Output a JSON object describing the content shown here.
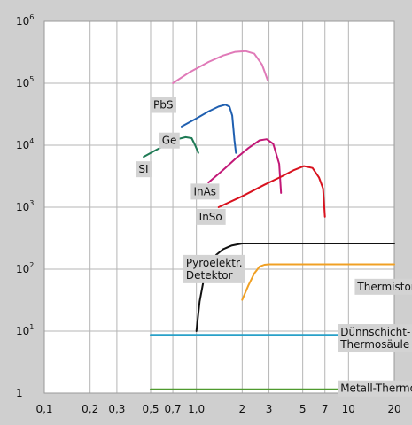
{
  "chart_data": {
    "type": "line",
    "title": "",
    "xlabel": "",
    "ylabel": "",
    "x_scale": "log",
    "y_scale": "log",
    "xlim": [
      0.1,
      20
    ],
    "ylim": [
      1,
      1000000
    ],
    "grid": true,
    "x_ticks": [
      {
        "value": 0.1,
        "label": "0,1"
      },
      {
        "value": 0.2,
        "label": "0,2"
      },
      {
        "value": 0.3,
        "label": "0,3"
      },
      {
        "value": 0.5,
        "label": "0,5"
      },
      {
        "value": 0.7,
        "label": "0,7"
      },
      {
        "value": 1.0,
        "label": "1,0"
      },
      {
        "value": 2,
        "label": "2"
      },
      {
        "value": 3,
        "label": "3"
      },
      {
        "value": 5,
        "label": "5"
      },
      {
        "value": 7,
        "label": "7"
      },
      {
        "value": 10,
        "label": "10"
      },
      {
        "value": 20,
        "label": "20"
      }
    ],
    "y_ticks": [
      {
        "value": 1,
        "label": "1",
        "exp": ""
      },
      {
        "value": 10,
        "label": "10",
        "exp": "1"
      },
      {
        "value": 100,
        "label": "10",
        "exp": "2"
      },
      {
        "value": 1000,
        "label": "10",
        "exp": "3"
      },
      {
        "value": 10000,
        "label": "10",
        "exp": "4"
      },
      {
        "value": 100000,
        "label": "10",
        "exp": "5"
      },
      {
        "value": 1000000,
        "label": "10",
        "exp": "6"
      }
    ],
    "series": [
      {
        "name": "PbS",
        "color": "#e07ab8",
        "points": [
          [
            0.7,
            100000
          ],
          [
            0.9,
            150000
          ],
          [
            1.2,
            220000
          ],
          [
            1.5,
            280000
          ],
          [
            1.8,
            320000
          ],
          [
            2.1,
            330000
          ],
          [
            2.4,
            300000
          ],
          [
            2.7,
            200000
          ],
          [
            2.95,
            110000
          ]
        ],
        "label_at": [
          0.5,
          60000
        ]
      },
      {
        "name": "Ge",
        "color": "#1f5fb0",
        "points": [
          [
            0.8,
            20000
          ],
          [
            1.0,
            27000
          ],
          [
            1.2,
            35000
          ],
          [
            1.4,
            42000
          ],
          [
            1.55,
            45000
          ],
          [
            1.65,
            42000
          ],
          [
            1.72,
            30000
          ],
          [
            1.78,
            12000
          ],
          [
            1.82,
            7500
          ]
        ],
        "label_at": [
          0.57,
          16000
        ]
      },
      {
        "name": "SI",
        "color": "#1e7a55",
        "points": [
          [
            0.45,
            6500
          ],
          [
            0.55,
            8500
          ],
          [
            0.65,
            10500
          ],
          [
            0.75,
            12500
          ],
          [
            0.85,
            13500
          ],
          [
            0.93,
            13000
          ],
          [
            0.98,
            10000
          ],
          [
            1.03,
            7500
          ]
        ],
        "label_at": [
          0.4,
          5500
        ]
      },
      {
        "name": "InAs",
        "color": "#c21877",
        "points": [
          [
            1.2,
            2500
          ],
          [
            1.5,
            4000
          ],
          [
            1.8,
            6000
          ],
          [
            2.2,
            9000
          ],
          [
            2.6,
            12000
          ],
          [
            2.9,
            12500
          ],
          [
            3.2,
            10500
          ],
          [
            3.5,
            5000
          ],
          [
            3.6,
            1700
          ]
        ],
        "label_at": [
          0.92,
          2400
        ]
      },
      {
        "name": "InSo",
        "color": "#d8121e",
        "points": [
          [
            1.4,
            1000
          ],
          [
            2,
            1500
          ],
          [
            2.8,
            2300
          ],
          [
            3.6,
            3100
          ],
          [
            4.4,
            4000
          ],
          [
            5.1,
            4600
          ],
          [
            5.8,
            4300
          ],
          [
            6.4,
            3000
          ],
          [
            6.8,
            2000
          ],
          [
            7.0,
            700
          ]
        ],
        "label_at": [
          1.0,
          940
        ]
      },
      {
        "name": "Pyroelektr. Detektor",
        "color": "#111111",
        "points": [
          [
            1.0,
            10
          ],
          [
            1.05,
            30
          ],
          [
            1.12,
            70
          ],
          [
            1.22,
            120
          ],
          [
            1.35,
            170
          ],
          [
            1.5,
            210
          ],
          [
            1.7,
            240
          ],
          [
            2.0,
            260
          ],
          [
            2.5,
            260
          ],
          [
            5,
            260
          ],
          [
            10,
            260
          ],
          [
            20,
            260
          ]
        ],
        "label_at": [
          0.82,
          170
        ]
      },
      {
        "name": "Thermistor",
        "color": "#f0a024",
        "points": [
          [
            2.0,
            32
          ],
          [
            2.2,
            55
          ],
          [
            2.4,
            85
          ],
          [
            2.6,
            110
          ],
          [
            2.8,
            118
          ],
          [
            3.0,
            120
          ],
          [
            5,
            120
          ],
          [
            10,
            120
          ],
          [
            20,
            120
          ]
        ],
        "label_at": [
          11,
          70
        ]
      },
      {
        "name": "Dünnschicht-Thermosäule",
        "color": "#28a0c8",
        "points": [
          [
            0.5,
            8.7
          ],
          [
            20,
            8.7
          ]
        ],
        "label_at": [
          8.5,
          13
        ]
      },
      {
        "name": "Metall-Thermosäule",
        "color": "#4f9a2e",
        "points": [
          [
            0.5,
            1.15
          ],
          [
            20,
            1.15
          ]
        ],
        "label_at": [
          8.5,
          1.6
        ]
      }
    ],
    "labels": [
      {
        "lines": [
          "PbS"
        ]
      },
      {
        "lines": [
          "Ge"
        ]
      },
      {
        "lines": [
          "SI"
        ]
      },
      {
        "lines": [
          "InAs"
        ]
      },
      {
        "lines": [
          "InSo"
        ]
      },
      {
        "lines": [
          "Pyroelektr.",
          "Detektor"
        ]
      },
      {
        "lines": [
          "Thermistor"
        ]
      },
      {
        "lines": [
          "Dünnschicht-",
          "Thermosäule"
        ]
      },
      {
        "lines": [
          "Metall-Thermosäule"
        ]
      }
    ]
  }
}
